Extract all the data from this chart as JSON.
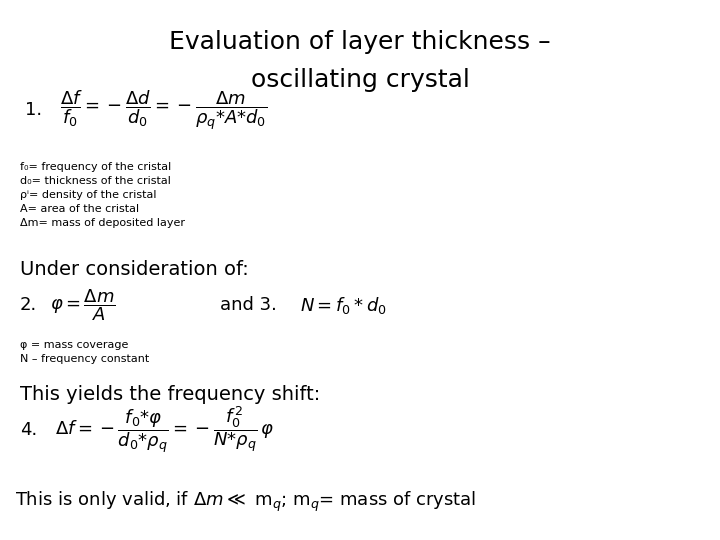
{
  "title_line1": "Evaluation of layer thickness –",
  "title_line2": "oscillating crystal",
  "title_fontsize": 18,
  "bg_color": "#ffffff",
  "text_color": "#000000",
  "eq1": "$\\dfrac{\\Delta f}{f_0} = -\\dfrac{\\Delta d}{d_0} = -\\dfrac{\\Delta m}{\\rho_q{*}A{*}d_0}$",
  "eq1_label": "1.",
  "eq1_notes": [
    "f₀= frequency of the cristal",
    "d₀= thickness of the cristal",
    "ρⁱ= density of the cristal",
    "A= area of the cristal",
    "Δm= mass of deposited layer"
  ],
  "mid_text": "Under consideration of:",
  "eq2": "$\\varphi{=}\\dfrac{\\Delta m}{A}$",
  "eq2_label": "2.",
  "eq3": "$N = f_0 * d_0$",
  "eq3_label": "and 3.",
  "eq23_notes": [
    "φ = mass coverage",
    "N – frequency constant"
  ],
  "pre_eq4": "This yields the frequency shift:",
  "eq4": "$\\Delta f = -\\dfrac{f_0{*}\\varphi}{d_0{*}\\rho_q} = -\\dfrac{f_0^{\\,2}}{N{*}\\rho_q}\\,\\varphi$",
  "eq4_label": "4.",
  "footer": "This is only valid, if $\\Delta m \\ll$ m$_q$; m$_q$= mass of crystal",
  "note_fontsize": 8,
  "label_fontsize": 13,
  "eq_fontsize": 13,
  "text_fontsize": 14,
  "footer_fontsize": 13
}
